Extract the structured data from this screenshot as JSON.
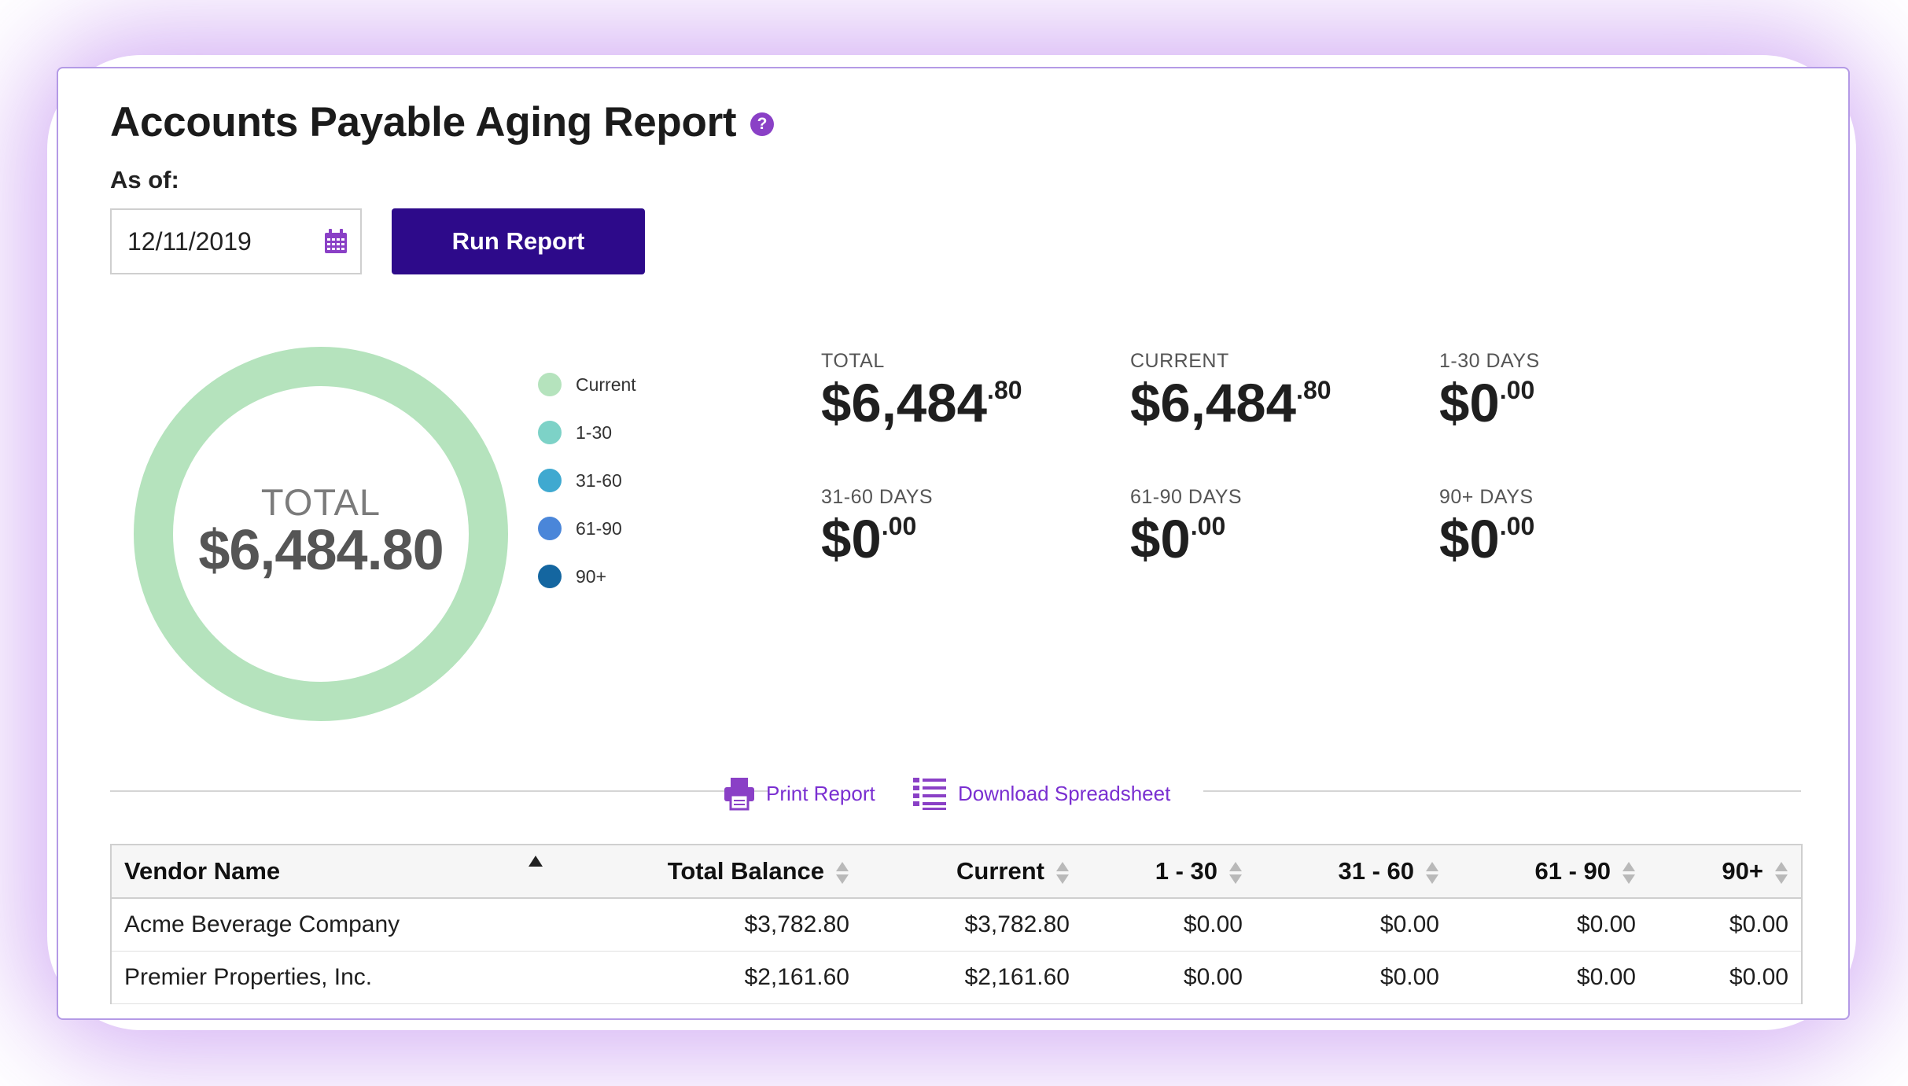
{
  "report": {
    "title": "Accounts Payable Aging Report",
    "help_icon": "question-circle-icon",
    "as_of_label": "As of:",
    "as_of_value": "12/11/2019",
    "run_button": "Run Report"
  },
  "donut": {
    "label": "TOTAL",
    "value": "$6,484.80"
  },
  "legend": [
    {
      "label": "Current",
      "color": "#b5e3bd"
    },
    {
      "label": "1-30",
      "color": "#7dd2c7"
    },
    {
      "label": "31-60",
      "color": "#3fa9d0"
    },
    {
      "label": "61-90",
      "color": "#4a86d9"
    },
    {
      "label": "90+",
      "color": "#1466a0"
    }
  ],
  "chart_data": {
    "type": "pie",
    "categories": [
      "Current",
      "1-30",
      "31-60",
      "61-90",
      "90+"
    ],
    "values": [
      6484.8,
      0,
      0,
      0,
      0
    ],
    "title": ""
  },
  "summary": [
    {
      "label": "TOTAL",
      "dollars": "$6,484",
      "cents": ".80"
    },
    {
      "label": "CURRENT",
      "dollars": "$6,484",
      "cents": ".80"
    },
    {
      "label": "1-30 DAYS",
      "dollars": "$0",
      "cents": ".00"
    },
    {
      "label": "31-60 DAYS",
      "dollars": "$0",
      "cents": ".00"
    },
    {
      "label": "61-90 DAYS",
      "dollars": "$0",
      "cents": ".00"
    },
    {
      "label": "90+ DAYS",
      "dollars": "$0",
      "cents": ".00"
    }
  ],
  "actions": {
    "print": "Print Report",
    "download": "Download Spreadsheet"
  },
  "table": {
    "columns": [
      "Vendor Name",
      "Total Balance",
      "Current",
      "1 - 30",
      "31 - 60",
      "61 - 90",
      "90+"
    ],
    "rows": [
      [
        "Acme Beverage Company",
        "$3,782.80",
        "$3,782.80",
        "$0.00",
        "$0.00",
        "$0.00",
        "$0.00"
      ],
      [
        "Premier Properties, Inc.",
        "$2,161.60",
        "$2,161.60",
        "$0.00",
        "$0.00",
        "$0.00",
        "$0.00"
      ]
    ]
  },
  "colors": {
    "accent": "#7a2fd1",
    "button": "#2d0a8a",
    "donut_ring": "#b5e3bd"
  }
}
